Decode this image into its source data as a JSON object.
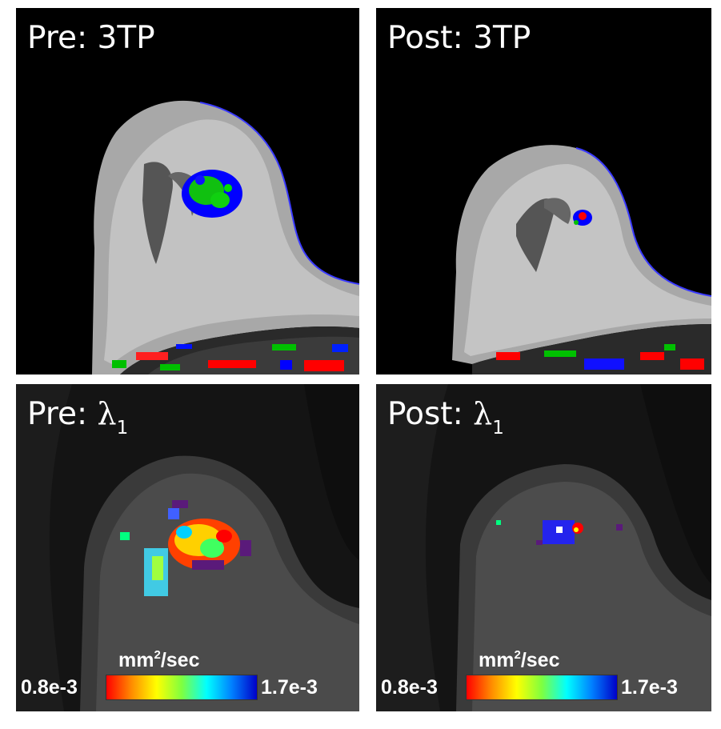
{
  "panels": [
    {
      "id": "pre-3tp",
      "title": "Pre: 3TP"
    },
    {
      "id": "post-3tp",
      "title": "Post: 3TP"
    },
    {
      "id": "pre-lambda",
      "title_symbol": "λ",
      "title_prefix": "Pre: ",
      "title_subscript": "1"
    },
    {
      "id": "post-lambda",
      "title_symbol": "λ",
      "title_prefix": "Post: ",
      "title_subscript": "1"
    }
  ],
  "colorbar": {
    "unit_base": "mm",
    "unit_sup": "2",
    "unit_rest": "/sec",
    "min_label": "0.8e-3",
    "max_label": "1.7e-3",
    "colors": [
      "#ff0000",
      "#ff8c00",
      "#ffff00",
      "#7fff3f",
      "#00ffff",
      "#0080ff",
      "#0000c8"
    ]
  }
}
